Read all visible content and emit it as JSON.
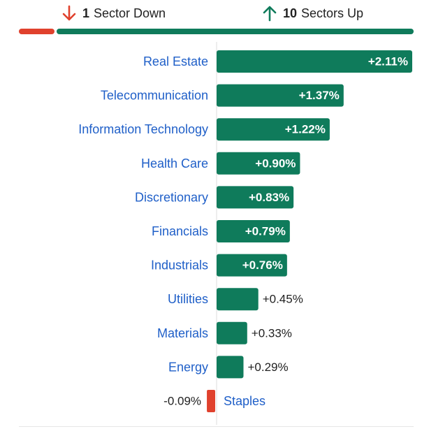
{
  "summary": {
    "down_count": "1",
    "down_label": "Sector Down",
    "up_count": "10",
    "up_label": "Sectors Up",
    "down_icon": "arrow-down-icon",
    "up_icon": "arrow-up-icon"
  },
  "colors": {
    "positive": "#0f7b5b",
    "negative": "#e0412d",
    "label": "#1f5fc8",
    "text": "#222222",
    "axis": "#dddddd"
  },
  "chart_data": {
    "type": "bar",
    "orientation": "horizontal",
    "categories": [
      "Real Estate",
      "Telecommunication",
      "Information Technology",
      "Health Care",
      "Discretionary",
      "Financials",
      "Industrials",
      "Utilities",
      "Materials",
      "Energy",
      "Staples"
    ],
    "values": [
      2.11,
      1.37,
      1.22,
      0.9,
      0.83,
      0.79,
      0.76,
      0.45,
      0.33,
      0.29,
      -0.09
    ],
    "value_labels": [
      "+2.11%",
      "+1.37%",
      "+1.22%",
      "+0.90%",
      "+0.83%",
      "+0.79%",
      "+0.76%",
      "+0.45%",
      "+0.33%",
      "+0.29%",
      "-0.09%"
    ],
    "xlim": [
      -0.14,
      2.11
    ],
    "grid": false
  }
}
